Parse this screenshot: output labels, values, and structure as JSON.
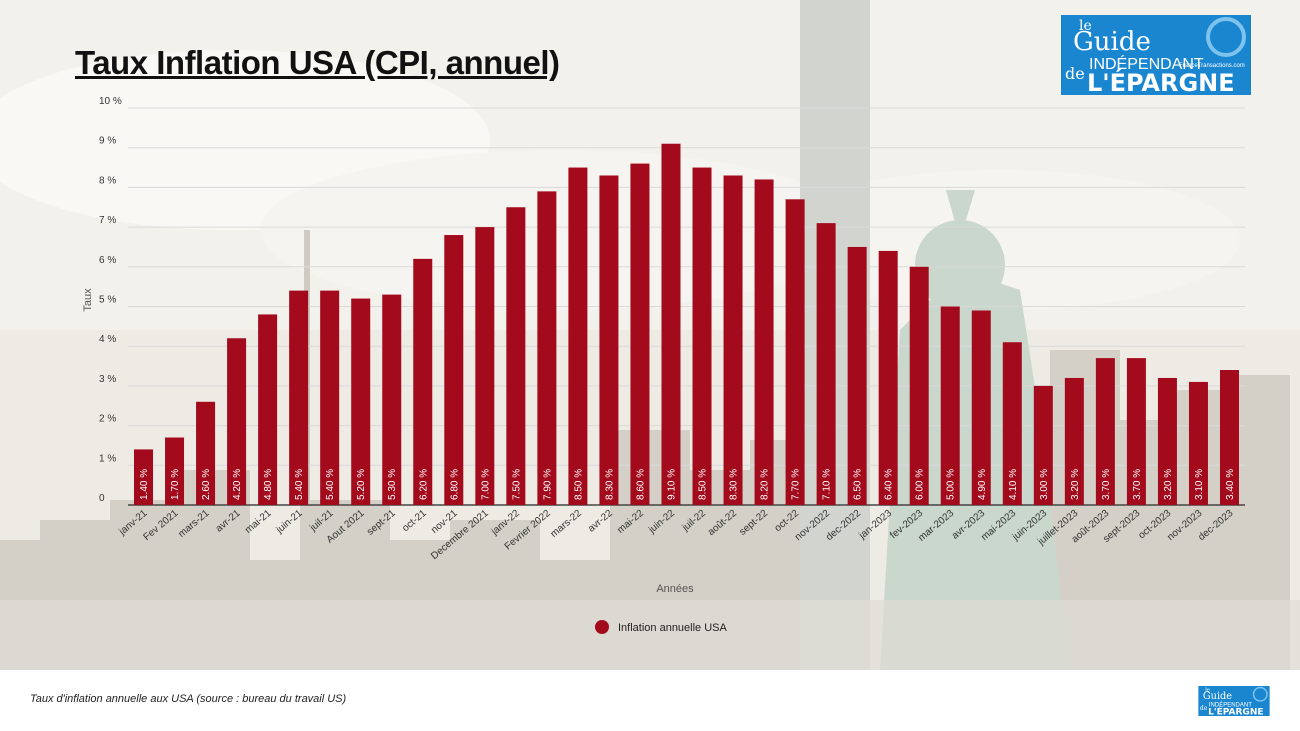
{
  "title": "Taux Inflation USA (CPI, annuel)",
  "caption": "Taux d'inflation annuelle aux USA (source : bureau du travail US)",
  "logo": {
    "le": "le",
    "guide": "Guide",
    "independant": "INDÉPENDANT",
    "de": "de",
    "epargne": "L'ÉPARGNE",
    "site": "FranceTransactions.com"
  },
  "colors": {
    "bar": "#a30a1c",
    "label": "#ffffff",
    "grid": "#d9d9d9",
    "axis": "#555555",
    "logo_bg": "#1a86d0"
  },
  "chart_data": {
    "type": "bar",
    "title": "Taux Inflation USA (CPI, annuel)",
    "xlabel": "Années",
    "ylabel": "Taux",
    "ylim": [
      0,
      10
    ],
    "y_ticks": [
      0,
      1,
      2,
      3,
      4,
      5,
      6,
      7,
      8,
      9,
      10
    ],
    "y_tick_labels": [
      "0",
      "1 %",
      "2 %",
      "3 %",
      "4 %",
      "5 %",
      "6 %",
      "7 %",
      "8 %",
      "9 %",
      "10 %"
    ],
    "grid": true,
    "legend": {
      "position": "bottom",
      "entries": [
        "Inflation annuelle USA"
      ]
    },
    "categories": [
      "janv-21",
      "Fev 2021",
      "mars-21",
      "avr-21",
      "mai-21",
      "juin-21",
      "juil-21",
      "Aout 2021",
      "sept-21",
      "oct-21",
      "nov-21",
      "Decembre 2021",
      "janv-22",
      "Fevrier 2022",
      "mars-22",
      "avr-22",
      "mai-22",
      "juin-22",
      "juil-22",
      "août-22",
      "sept-22",
      "oct-22",
      "nov-2022",
      "dec-2022",
      "jan-2023",
      "fev-2023",
      "mar-2023",
      "avr-2023",
      "mai-2023",
      "juin-2023",
      "juillet-2023",
      "août-2023",
      "sept-2023",
      "oct-2023",
      "nov-2023",
      "dec-2023"
    ],
    "series": [
      {
        "name": "Inflation annuelle USA",
        "values": [
          1.4,
          1.7,
          2.6,
          4.2,
          4.8,
          5.4,
          5.4,
          5.2,
          5.3,
          6.2,
          6.8,
          7.0,
          7.5,
          7.9,
          8.5,
          8.3,
          8.6,
          9.1,
          8.5,
          8.3,
          8.2,
          7.7,
          7.1,
          6.5,
          6.4,
          6.0,
          5.0,
          4.9,
          4.1,
          3.0,
          3.2,
          3.7,
          3.7,
          3.2,
          3.1,
          3.4
        ],
        "labels": [
          "1.40 %",
          "1.70 %",
          "2.60 %",
          "4.20 %",
          "4.80 %",
          "5.40 %",
          "5.40 %",
          "5.20 %",
          "5.30 %",
          "6.20 %",
          "6.80 %",
          "7.00 %",
          "7.50 %",
          "7.90 %",
          "8.50 %",
          "8.30 %",
          "8.60 %",
          "9.10 %",
          "8.50 %",
          "8.30 %",
          "8.20 %",
          "7.70 %",
          "7.10 %",
          "6.50 %",
          "6.40 %",
          "6.00 %",
          "5.00 %",
          "4.90 %",
          "4.10 %",
          "3.00 %",
          "3.20 %",
          "3.70 %",
          "3.70 %",
          "3.20 %",
          "3.10 %",
          "3.40 %"
        ]
      }
    ]
  }
}
